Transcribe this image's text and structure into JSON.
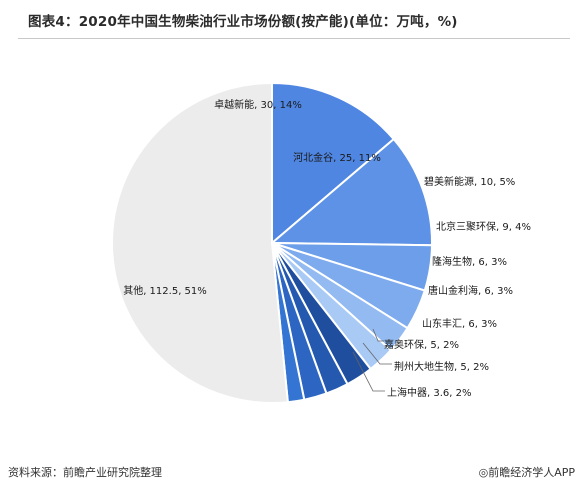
{
  "title": "图表4：2020年中国生物柴油行业市场份额(按产能)(单位：万吨，%)",
  "source_note": "资料来源：前瞻产业研究院整理",
  "brand_note": "◎前瞻经济学人APP",
  "chart_data": {
    "type": "pie",
    "title": "图表4：2020年中国生物柴油行业市场份额(按产能)(单位：万吨，%)",
    "unit": "万吨",
    "slices": [
      {
        "label": "卓越新能, 30, 14%",
        "name": "卓越新能",
        "value": 30,
        "percent": 14,
        "color": "#4f86e2"
      },
      {
        "label": "河北金谷, 25, 11%",
        "name": "河北金谷",
        "value": 25,
        "percent": 11,
        "color": "#5d92e6"
      },
      {
        "label": "碧美新能源, 10, 5%",
        "name": "碧美新能源",
        "value": 10,
        "percent": 5,
        "color": "#6c9eea"
      },
      {
        "label": "北京三聚环保, 9, 4%",
        "name": "北京三聚环保",
        "value": 9,
        "percent": 4,
        "color": "#7eabee"
      },
      {
        "label": "隆海生物, 6, 3%",
        "name": "隆海生物",
        "value": 6,
        "percent": 3,
        "color": "#93bbf2"
      },
      {
        "label": "唐山金利海, 6, 3%",
        "name": "唐山金利海",
        "value": 6,
        "percent": 3,
        "color": "#a9caf5"
      },
      {
        "label": "山东丰汇, 6, 3%",
        "name": "山东丰汇",
        "value": 6,
        "percent": 3,
        "color": "#1f4e9e"
      },
      {
        "label": "嘉奥环保, 5, 2%",
        "name": "嘉奥环保",
        "value": 5,
        "percent": 2,
        "color": "#2559b0"
      },
      {
        "label": "荆州大地生物, 5, 2%",
        "name": "荆州大地生物",
        "value": 5,
        "percent": 2,
        "color": "#2c66c2"
      },
      {
        "label": "上海中器, 3.6, 2%",
        "name": "上海中器",
        "value": 3.6,
        "percent": 2,
        "color": "#3474d3"
      },
      {
        "label": "其他, 112.5, 51%",
        "name": "其他",
        "value": 112.5,
        "percent": 51,
        "color": "#ececec"
      }
    ]
  }
}
